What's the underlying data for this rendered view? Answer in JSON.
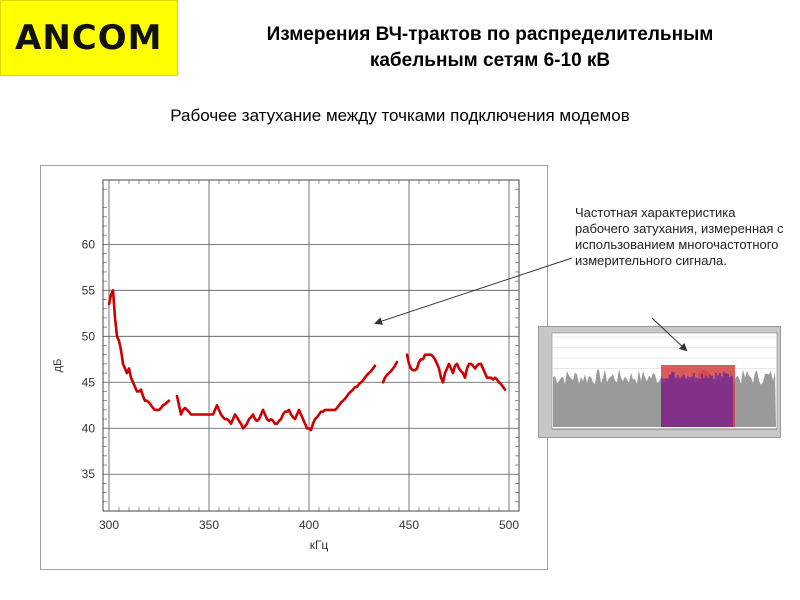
{
  "logo": {
    "text": "ANCOM",
    "bg_color": "#ffff00"
  },
  "header": {
    "title_line1": "Измерения ВЧ-трактов по распределительным",
    "title_line2": "кабельным сетям 6-10 кВ",
    "subtitle": "Рабочее затухание между точками подключения модемов"
  },
  "annotation": {
    "text": "Частотная характеристика рабочего затухания, измеренная с использованием многочастотного измерительного сигнала."
  },
  "chart_data": {
    "type": "line",
    "xlabel": "кГц",
    "ylabel": "дБ",
    "xlim": [
      297,
      505
    ],
    "ylim": [
      31,
      67
    ],
    "xticks": [
      300,
      350,
      400,
      450,
      500
    ],
    "yticks": [
      35,
      40,
      45,
      50,
      55,
      60
    ],
    "grid": true,
    "color": "#cc0000",
    "series": [
      {
        "x": [
          300,
          301,
          302,
          303,
          304,
          305,
          306,
          307,
          308,
          309,
          310,
          311,
          312,
          313,
          314,
          315,
          316,
          317,
          318,
          319,
          320,
          321,
          322,
          323,
          324,
          325,
          326,
          327,
          328,
          329,
          330
        ],
        "y": [
          53.5,
          54.5,
          55,
          52,
          50,
          49.5,
          48.5,
          47,
          46.5,
          46,
          46.5,
          45.5,
          45,
          44.5,
          44,
          44,
          44.2,
          43.5,
          43,
          43,
          42.8,
          42.5,
          42.2,
          42,
          42,
          42,
          42.2,
          42.5,
          42.6,
          42.8,
          43
        ]
      },
      {
        "x": [
          334,
          335,
          336,
          337,
          338,
          339,
          340,
          341,
          342,
          343,
          344,
          345,
          346,
          347,
          348,
          349,
          350,
          351,
          352,
          353,
          354,
          355,
          356,
          357,
          358,
          359,
          360,
          361,
          362,
          363,
          364,
          365,
          366,
          367,
          368,
          369,
          370,
          371,
          372,
          373,
          374,
          375,
          376,
          377,
          378,
          379,
          380,
          381,
          382,
          383,
          384,
          385,
          386,
          387,
          388,
          389,
          390,
          391,
          392,
          393,
          394,
          395,
          396,
          397,
          398,
          399,
          400,
          401,
          402,
          403,
          404,
          405,
          406,
          407,
          408,
          409,
          410,
          411,
          412,
          413,
          414,
          415,
          416,
          417,
          418,
          419,
          420,
          421,
          422,
          423,
          424,
          425,
          426,
          427,
          428,
          429,
          430,
          431,
          432,
          433
        ],
        "y": [
          43.5,
          42.5,
          41.5,
          42,
          42.2,
          42,
          41.8,
          41.5,
          41.5,
          41.5,
          41.5,
          41.5,
          41.5,
          41.5,
          41.5,
          41.5,
          41.5,
          41.5,
          41.5,
          42,
          42.5,
          42,
          41.5,
          41.2,
          41,
          41,
          40.8,
          40.5,
          41,
          41.5,
          41.2,
          40.8,
          40.5,
          40,
          40.2,
          40.5,
          41,
          41.2,
          41.5,
          41,
          40.8,
          41,
          41.5,
          42,
          41.5,
          41,
          40.8,
          41,
          40.8,
          40.5,
          40.5,
          40.8,
          41,
          41.5,
          41.8,
          41.8,
          42,
          41.5,
          41.2,
          41,
          41.5,
          42,
          41.5,
          41,
          40.5,
          40,
          40,
          39.8,
          40.5,
          41,
          41.2,
          41.5,
          41.8,
          41.8,
          42,
          42,
          42,
          42,
          42,
          42,
          42.2,
          42.5,
          42.8,
          43,
          43.2,
          43.5,
          43.8,
          44,
          44.2,
          44.5,
          44.5,
          44.8,
          45,
          45.2,
          45.5,
          45.8,
          46,
          46.2,
          46.5,
          46.8
        ]
      },
      {
        "x": [
          437,
          438,
          439,
          440,
          441,
          442,
          443,
          444
        ],
        "y": [
          45,
          45.5,
          45.8,
          46,
          46.2,
          46.5,
          46.8,
          47.2
        ]
      },
      {
        "x": [
          449,
          450,
          451,
          452,
          453,
          454,
          455,
          456,
          457,
          458,
          459,
          460,
          461,
          462,
          463,
          464,
          465,
          466,
          467,
          468,
          469,
          470,
          471,
          472,
          473,
          474,
          475,
          476,
          477,
          478,
          479,
          480,
          481,
          482,
          483,
          484,
          485,
          486,
          487,
          488,
          489,
          490,
          491,
          492,
          493,
          494,
          495,
          496,
          497,
          498
        ],
        "y": [
          48,
          47,
          46.5,
          46.3,
          46.3,
          46.5,
          47.2,
          47.5,
          47.5,
          48,
          48,
          48,
          48,
          47.8,
          47.5,
          47,
          46.5,
          45.5,
          45,
          46,
          46.5,
          47,
          46.5,
          46,
          46.8,
          47,
          46.5,
          46.2,
          46,
          45.5,
          46.5,
          47,
          47,
          46.8,
          46.5,
          46.8,
          47,
          47,
          46.5,
          46,
          45.5,
          45.5,
          45.5,
          45.3,
          45.5,
          45.3,
          45,
          44.8,
          44.5,
          44.2
        ]
      }
    ]
  }
}
